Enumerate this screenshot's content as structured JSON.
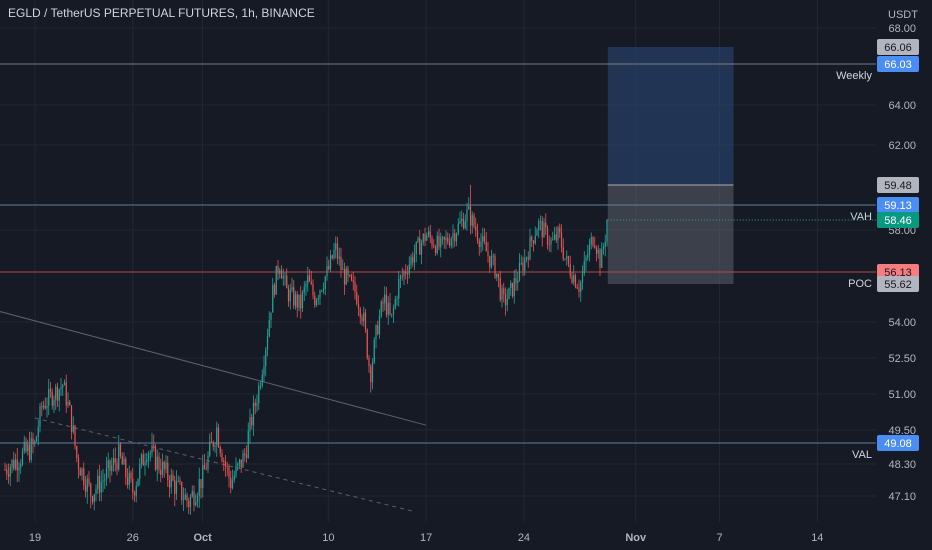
{
  "chart_data": {
    "type": "candlestick",
    "title": "EGLD / TetherUS PERPETUAL FUTURES, 1h, BINANCE",
    "currency": "USDT",
    "colors": {
      "background": "#161a25",
      "up": "#26a69a",
      "down": "#ef5350",
      "grid": "#232733",
      "text": "#d1d4dc",
      "axis_text": "#b2b5be",
      "blue_label": "#2962ff",
      "green_label": "#089981",
      "red_label": "#f23645",
      "gray_label": "#787b86"
    },
    "y_axis": {
      "ticks": [
        "68.00",
        "64.00",
        "62.00",
        "58.00",
        "54.00",
        "52.50",
        "51.00",
        "49.50",
        "48.30",
        "47.10"
      ],
      "tick_values": [
        68.0,
        64.0,
        62.0,
        58.0,
        54.0,
        52.5,
        51.0,
        49.5,
        48.3,
        47.1
      ]
    },
    "x_axis": {
      "ticks": [
        "19",
        "26",
        "Oct",
        "10",
        "17",
        "24",
        "Nov",
        "7",
        "14"
      ],
      "bold": [
        "Oct",
        "Nov"
      ]
    },
    "levels": [
      {
        "label": "Weekly",
        "value": 66.03,
        "color": "#787b86"
      },
      {
        "label": "VAH",
        "value": 59.13,
        "color": "#5d7fa3"
      },
      {
        "label": "POC",
        "value": 56.13,
        "color": "#b54a4a"
      },
      {
        "label": "VAL",
        "value": 49.08,
        "color": "#5d7fa3"
      }
    ],
    "price_labels": [
      {
        "text": "66.06",
        "value": 66.06,
        "style": "gray"
      },
      {
        "text": "66.03",
        "value": 66.03,
        "style": "blue"
      },
      {
        "text": "59.48",
        "value": 59.48,
        "style": "gray"
      },
      {
        "text": "59.13",
        "value": 59.13,
        "style": "blue"
      },
      {
        "text": "58.46",
        "value": 58.46,
        "style": "green"
      },
      {
        "text": "56.13",
        "value": 56.13,
        "style": "red"
      },
      {
        "text": "55.62",
        "value": 55.62,
        "style": "gray"
      },
      {
        "text": "49.08",
        "value": 49.08,
        "style": "blue"
      }
    ],
    "position_tool": {
      "entry": 59.48,
      "target": 66.06,
      "stop": 55.62,
      "start_date": "Oct 30",
      "end_date": "Nov 8"
    },
    "trendlines": [
      {
        "from": [
          "Sep 13",
          55.0
        ],
        "to": [
          "Oct 17",
          49.7
        ],
        "style": "solid"
      },
      {
        "from": [
          "Sep 19",
          50.0
        ],
        "to": [
          "Oct 16",
          46.6
        ],
        "style": "dashed"
      }
    ],
    "current_price": 58.46,
    "price_path": [
      [
        "Sep 19",
        49.0
      ],
      [
        "Sep 19",
        50.5
      ],
      [
        "Sep 20",
        50.8
      ],
      [
        "Sep 21",
        51.4
      ],
      [
        "Sep 21",
        50.2
      ],
      [
        "Sep 22",
        48.5
      ],
      [
        "Sep 23",
        47.2
      ],
      [
        "Sep 24",
        47.8
      ],
      [
        "Sep 25",
        48.6
      ],
      [
        "Sep 25",
        47.9
      ],
      [
        "Sep 26",
        47.3
      ],
      [
        "Sep 27",
        48.9
      ],
      [
        "Sep 28",
        48.2
      ],
      [
        "Sep 29",
        47.5
      ],
      [
        "Sep 30",
        46.9
      ],
      [
        "Oct 1",
        47.8
      ],
      [
        "Oct 2",
        49.6
      ],
      [
        "Oct 2",
        48.5
      ],
      [
        "Oct 3",
        47.6
      ],
      [
        "Oct 4",
        48.6
      ],
      [
        "Oct 5",
        51.2
      ],
      [
        "Oct 5",
        53.0
      ],
      [
        "Oct 6",
        55.2
      ],
      [
        "Oct 6",
        56.6
      ],
      [
        "Oct 7",
        55.3
      ],
      [
        "Oct 8",
        54.7
      ],
      [
        "Oct 8",
        55.8
      ],
      [
        "Oct 9",
        55.0
      ],
      [
        "Oct 10",
        56.2
      ],
      [
        "Oct 10",
        57.2
      ],
      [
        "Oct 11",
        56.1
      ],
      [
        "Oct 12",
        55.2
      ],
      [
        "Oct 12",
        54.2
      ],
      [
        "Oct 13",
        51.8
      ],
      [
        "Oct 13",
        53.8
      ],
      [
        "Oct 14",
        55.0
      ],
      [
        "Oct 14",
        54.0
      ],
      [
        "Oct 15",
        55.6
      ],
      [
        "Oct 16",
        56.8
      ],
      [
        "Oct 17",
        57.8
      ],
      [
        "Oct 18",
        57.2
      ],
      [
        "Oct 19",
        57.9
      ],
      [
        "Oct 20",
        58.8
      ],
      [
        "Oct 21",
        57.4
      ],
      [
        "Oct 22",
        56.2
      ],
      [
        "Oct 22",
        54.8
      ],
      [
        "Oct 23",
        55.2
      ],
      [
        "Oct 24",
        56.6
      ],
      [
        "Oct 25",
        58.3
      ],
      [
        "Oct 26",
        57.4
      ],
      [
        "Oct 26",
        57.8
      ],
      [
        "Oct 27",
        56.6
      ],
      [
        "Oct 28",
        55.5
      ],
      [
        "Oct 28",
        56.8
      ],
      [
        "Oct 29",
        57.8
      ],
      [
        "Oct 29",
        56.5
      ],
      [
        "Oct 30",
        58.46
      ]
    ]
  }
}
